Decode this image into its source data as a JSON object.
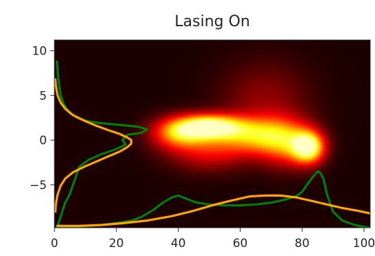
{
  "chart_data": {
    "type": "heatmap",
    "title": "Lasing On",
    "xlabel": "",
    "ylabel": "",
    "xlim": [
      0,
      102
    ],
    "ylim": [
      -9.8,
      11.2
    ],
    "xticks": [
      0,
      20,
      40,
      60,
      80,
      100
    ],
    "yticks": [
      10,
      5,
      0,
      -5
    ],
    "ytick_labels": [
      "10",
      "5",
      "0",
      "−5"
    ],
    "grid": false,
    "colormap": "hot",
    "heatmap_blobs": [
      {
        "x": 50,
        "y": 1.5,
        "sx": 7,
        "sy": 0.9,
        "intensity": 1.0
      },
      {
        "x": 40,
        "y": 0.8,
        "sx": 6,
        "sy": 1.2,
        "intensity": 0.55
      },
      {
        "x": 65,
        "y": 0.6,
        "sx": 8,
        "sy": 1.4,
        "intensity": 0.55
      },
      {
        "x": 82,
        "y": -0.8,
        "sx": 3.5,
        "sy": 1.2,
        "intensity": 0.95
      },
      {
        "x": 75,
        "y": -0.3,
        "sx": 6,
        "sy": 1.8,
        "intensity": 0.5
      },
      {
        "x": 50,
        "y": -1.0,
        "sx": 9,
        "sy": 1.6,
        "intensity": 0.35
      },
      {
        "x": 68,
        "y": 4.5,
        "sx": 10,
        "sy": 3.0,
        "intensity": 0.18
      }
    ],
    "series": [
      {
        "color": "#008000",
        "orientation": "vertical",
        "x": [
          0.8,
          1.2,
          2.0,
          3.0,
          5.0,
          8.0,
          11.0,
          15.0,
          21.0,
          27.0,
          30.0,
          28.0,
          23.5,
          22.0,
          23.0,
          20.0,
          15.0,
          11.0,
          8.0,
          7.0,
          6.0,
          5.0,
          3.5,
          2.5,
          1.8,
          1.2,
          0.8
        ],
        "y": [
          8.8,
          7.0,
          5.0,
          4.0,
          3.0,
          2.4,
          2.1,
          1.9,
          1.7,
          1.5,
          1.2,
          0.8,
          0.6,
          0.0,
          -0.5,
          -1.0,
          -1.6,
          -2.2,
          -3.0,
          -4.0,
          -5.0,
          -6.0,
          -7.0,
          -8.0,
          -8.8,
          -9.4,
          -9.7
        ]
      },
      {
        "color": "#FFA500",
        "orientation": "vertical",
        "x": [
          0.3,
          0.5,
          1.0,
          2.0,
          3.5,
          6.0,
          9.5,
          13.5,
          17.5,
          21.0,
          23.5,
          24.8,
          24.8,
          23.5,
          21.0,
          17.5,
          13.5,
          9.5,
          6.0,
          3.5,
          2.0,
          1.0,
          0.5,
          0.3
        ],
        "y": [
          6.8,
          6.0,
          5.0,
          4.2,
          3.5,
          2.8,
          2.2,
          1.6,
          1.1,
          0.7,
          0.3,
          0.0,
          -0.4,
          -0.8,
          -1.3,
          -1.8,
          -2.4,
          -3.0,
          -3.6,
          -4.3,
          -5.1,
          -6.1,
          -7.1,
          -8.0
        ]
      },
      {
        "color": "#008000",
        "orientation": "horizontal",
        "x": [
          1,
          5,
          10,
          15,
          20,
          25,
          28,
          32,
          35,
          38,
          40,
          43,
          46,
          50,
          55,
          60,
          65,
          70,
          74,
          78,
          80,
          82,
          84,
          85,
          86,
          87,
          88,
          90,
          93,
          97,
          100,
          102
        ],
        "y": [
          -9.7,
          -9.7,
          -9.6,
          -9.5,
          -9.3,
          -9.0,
          -8.6,
          -7.8,
          -7.0,
          -6.4,
          -6.2,
          -6.6,
          -7.0,
          -7.2,
          -7.3,
          -7.3,
          -7.2,
          -7.0,
          -6.7,
          -6.3,
          -5.8,
          -4.8,
          -3.9,
          -3.5,
          -3.7,
          -4.4,
          -6.0,
          -8.0,
          -9.0,
          -9.5,
          -9.7,
          -9.8
        ]
      },
      {
        "color": "#FFA500",
        "orientation": "horizontal",
        "x": [
          1,
          8,
          15,
          22,
          30,
          38,
          45,
          52,
          58,
          63,
          68,
          73,
          78,
          83,
          88,
          93,
          98,
          102
        ],
        "y": [
          -9.6,
          -9.6,
          -9.5,
          -9.3,
          -9.0,
          -8.5,
          -7.9,
          -7.2,
          -6.7,
          -6.3,
          -6.2,
          -6.2,
          -6.4,
          -6.8,
          -7.2,
          -7.6,
          -7.9,
          -8.2
        ]
      }
    ]
  }
}
